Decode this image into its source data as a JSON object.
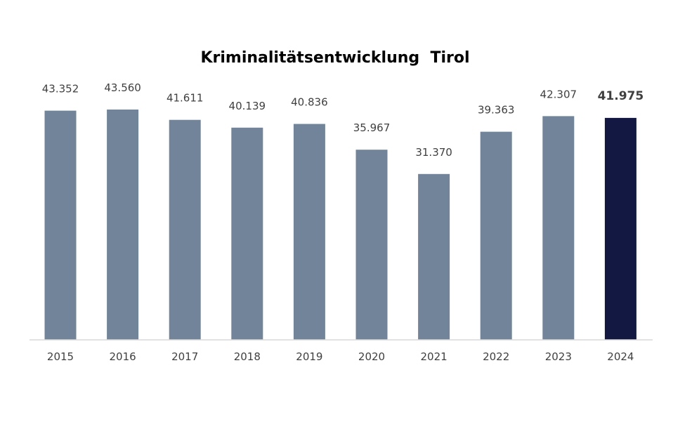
{
  "chart_data": {
    "type": "bar",
    "title": "Kriminalitätsentwicklung  Tirol",
    "categories": [
      "2015",
      "2016",
      "2017",
      "2018",
      "2019",
      "2020",
      "2021",
      "2022",
      "2023",
      "2024"
    ],
    "values": [
      43352,
      43560,
      41611,
      40139,
      40836,
      35967,
      31370,
      39363,
      42307,
      41975
    ],
    "value_labels": [
      "43.352",
      "43.560",
      "41.611",
      "40.139",
      "40.836",
      "35.967",
      "31.370",
      "39.363",
      "42.307",
      "41.975"
    ],
    "highlight_index": 9,
    "ylim": [
      0,
      43560
    ],
    "grid": false,
    "legend": "none",
    "xlabel": "",
    "ylabel": "",
    "colors": {
      "bar": "#718499",
      "highlight_bar": "#121842",
      "axis": "#d9d9d9",
      "text": "#404040",
      "title": "#000000"
    }
  }
}
